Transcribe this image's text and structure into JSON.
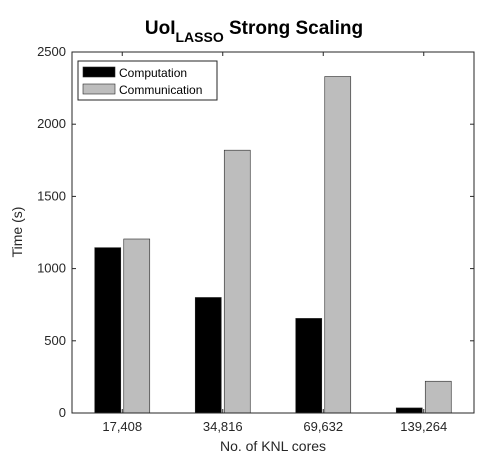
{
  "chart_data": {
    "type": "bar",
    "title_main": "UoI",
    "title_sub": "LASSO",
    "title_rest": " Strong Scaling",
    "xlabel": "No. of KNL cores",
    "ylabel": "Time (s)",
    "categories": [
      "17,408",
      "34,816",
      "69,632",
      "139,264"
    ],
    "series": [
      {
        "name": "Computation",
        "color": "#000000",
        "values": [
          1145,
          800,
          655,
          35
        ]
      },
      {
        "name": "Communication",
        "color": "#bdbdbd",
        "values": [
          1205,
          1820,
          2330,
          220
        ]
      }
    ],
    "ylim": [
      0,
      2500
    ],
    "yticks": [
      "0",
      "500",
      "1000",
      "1500",
      "2000",
      "2500"
    ],
    "legend_position": "top-left",
    "grid": false
  }
}
